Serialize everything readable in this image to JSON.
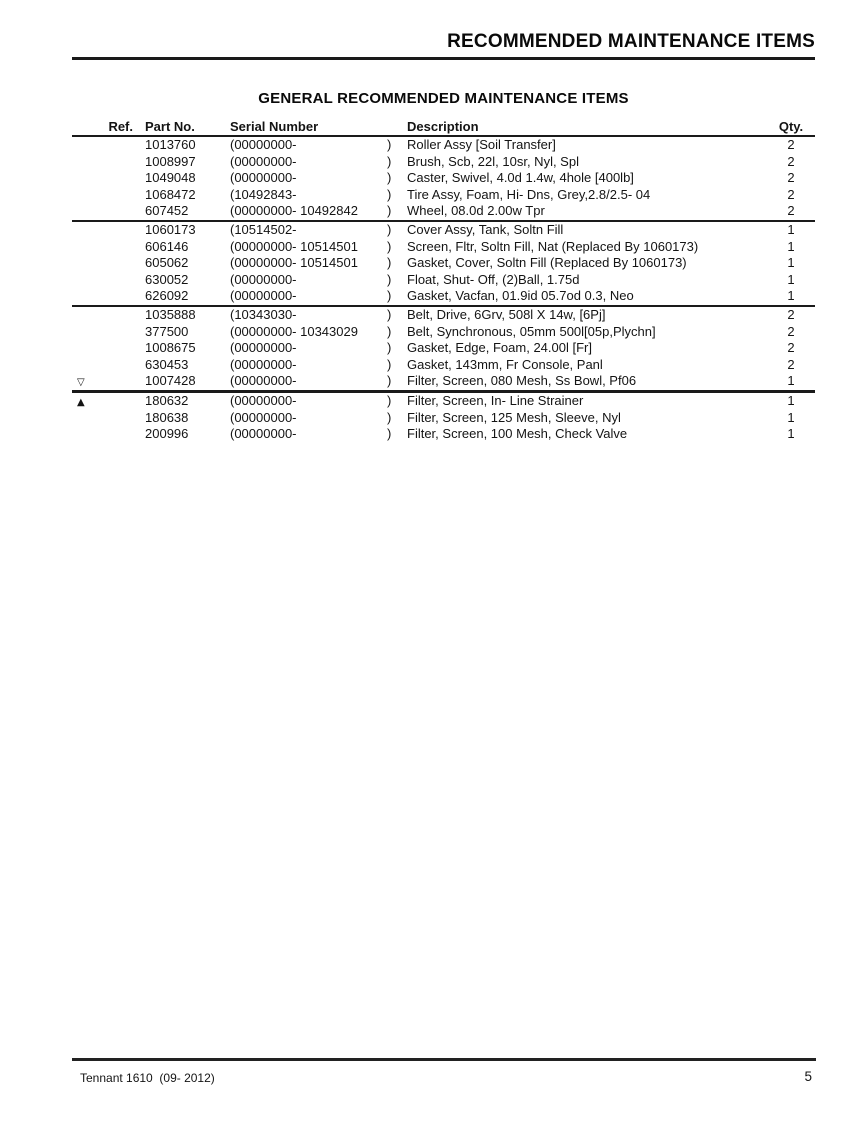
{
  "page": {
    "header_title": "RECOMMENDED MAINTENANCE ITEMS",
    "section_title": "GENERAL RECOMMENDED MAINTENANCE ITEMS"
  },
  "table": {
    "headers": {
      "ref": "Ref.",
      "part": "Part No.",
      "serial": "Serial Number",
      "description": "Description",
      "qty": "Qty."
    },
    "serial_close": ")",
    "groups": [
      {
        "rows": [
          {
            "ref_glyph": "",
            "part": "1013760",
            "serial": "(00000000-",
            "description": "Roller Assy [Soil Transfer]",
            "qty": "2"
          },
          {
            "ref_glyph": "",
            "part": "1008997",
            "serial": "(00000000-",
            "description": "Brush, Scb, 22l, 10sr, Nyl, Spl",
            "qty": "2"
          },
          {
            "ref_glyph": "",
            "part": "1049048",
            "serial": "(00000000-",
            "description": "Caster, Swivel, 4.0d 1.4w, 4hole [400lb]",
            "qty": "2"
          },
          {
            "ref_glyph": "",
            "part": "1068472",
            "serial": "(10492843-",
            "description": "Tire Assy, Foam, Hi- Dns, Grey,2.8/2.5- 04",
            "qty": "2"
          },
          {
            "ref_glyph": "",
            "part": "607452",
            "serial": "(00000000- 10492842",
            "description": "Wheel, 08.0d 2.00w Tpr",
            "qty": "2"
          }
        ]
      },
      {
        "rows": [
          {
            "ref_glyph": "",
            "part": "1060173",
            "serial": "(10514502-",
            "description": "Cover Assy, Tank, Soltn Fill",
            "qty": "1"
          },
          {
            "ref_glyph": "",
            "part": "606146",
            "serial": "(00000000- 10514501",
            "description": "Screen, Fltr, Soltn Fill, Nat (Replaced By 1060173)",
            "qty": "1"
          },
          {
            "ref_glyph": "",
            "part": "605062",
            "serial": "(00000000- 10514501",
            "description": "Gasket, Cover, Soltn Fill (Replaced By 1060173)",
            "qty": "1"
          },
          {
            "ref_glyph": "",
            "part": "630052",
            "serial": "(00000000-",
            "description": "Float, Shut- Off, (2)Ball, 1.75d",
            "qty": "1"
          },
          {
            "ref_glyph": "",
            "part": "626092",
            "serial": "(00000000-",
            "description": "Gasket, Vacfan, 01.9id 05.7od 0.3, Neo",
            "qty": "1"
          }
        ]
      },
      {
        "rows": [
          {
            "ref_glyph": "",
            "part": "1035888",
            "serial": "(10343030-",
            "description": "Belt, Drive, 6Grv, 508l X 14w, [6Pj]",
            "qty": "2"
          },
          {
            "ref_glyph": "",
            "part": "377500",
            "serial": "(00000000- 10343029",
            "description": "Belt, Synchronous, 05mm 500l[05p,Plychn]",
            "qty": "2"
          },
          {
            "ref_glyph": "",
            "part": "1008675",
            "serial": "(00000000-",
            "description": "Gasket, Edge, Foam, 24.00l [Fr]",
            "qty": "2"
          },
          {
            "ref_glyph": "",
            "part": "630453",
            "serial": "(00000000-",
            "description": "Gasket, 143mm, Fr Console, Panl",
            "qty": "2"
          },
          {
            "ref_glyph": "▽",
            "ref_icon": "white-down-triangle-icon",
            "part": "1007428",
            "serial": "(00000000-",
            "description": "Filter, Screen, 080 Mesh, Ss Bowl, Pf06",
            "qty": "1"
          }
        ]
      },
      {
        "rows": [
          {
            "ref_glyph": "▲",
            "ref_icon": "black-up-triangle-icon",
            "part": "180632",
            "serial": "(00000000-",
            "description": "Filter, Screen, In- Line Strainer",
            "qty": "1"
          },
          {
            "ref_glyph": "",
            "part": "180638",
            "serial": "(00000000-",
            "description": "Filter, Screen, 125 Mesh, Sleeve, Nyl",
            "qty": "1"
          },
          {
            "ref_glyph": "",
            "part": "200996",
            "serial": "(00000000-",
            "description": "Filter, Screen, 100 Mesh, Check Valve",
            "qty": "1"
          }
        ]
      }
    ]
  },
  "footer": {
    "left_text": "Tennant 1610  (09- 2012)",
    "page_number": "5"
  }
}
